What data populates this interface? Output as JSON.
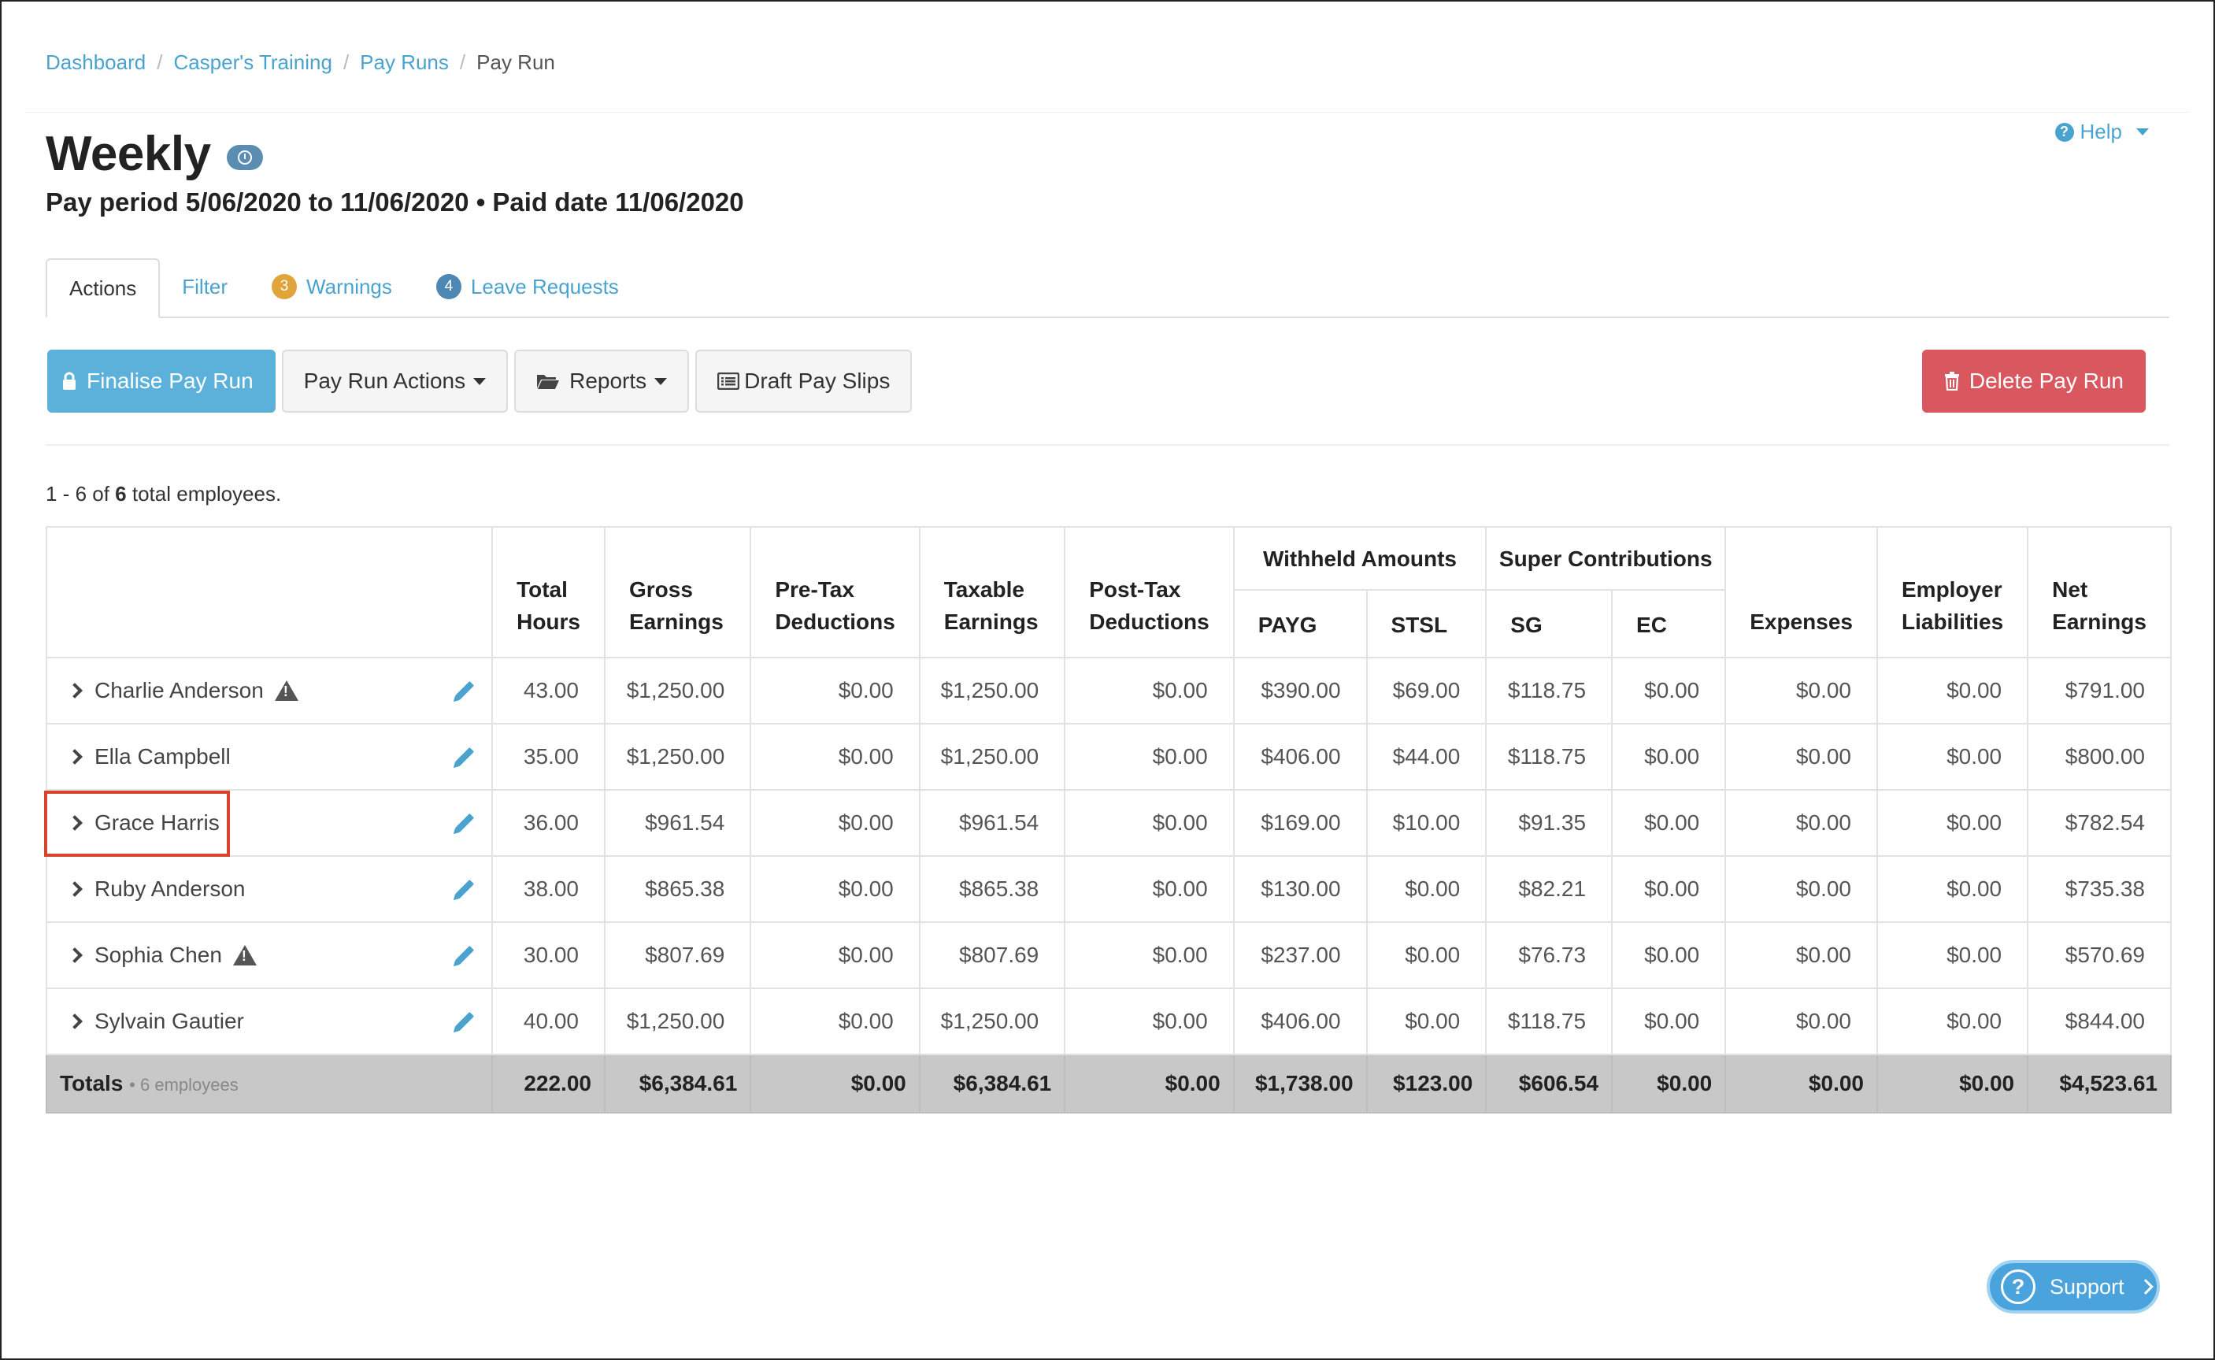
{
  "breadcrumb": {
    "items": [
      "Dashboard",
      "Casper's Training",
      "Pay Runs"
    ],
    "current": "Pay Run"
  },
  "help": {
    "label": "Help"
  },
  "page": {
    "title": "Weekly",
    "subtitle": "Pay period 5/06/2020 to 11/06/2020 • Paid date 11/06/2020"
  },
  "tabs": [
    {
      "label": "Actions",
      "badge": ""
    },
    {
      "label": "Filter",
      "badge": ""
    },
    {
      "label": "Warnings",
      "badge": "3",
      "badge_color": "#e0a43a"
    },
    {
      "label": "Leave Requests",
      "badge": "4",
      "badge_color": "#4f87b4"
    }
  ],
  "toolbar": {
    "finalise": "Finalise Pay Run",
    "pay_run_actions": "Pay Run Actions",
    "reports": "Reports",
    "draft_pay_slips": "Draft Pay Slips",
    "delete": "Delete Pay Run"
  },
  "count": {
    "prefix": "1 - 6 of",
    "total": "6",
    "suffix": "total employees."
  },
  "table": {
    "headers": {
      "total_hours": "Total Hours",
      "gross_earnings": "Gross Earnings",
      "pre_tax": "Pre-Tax Deductions",
      "taxable": "Taxable Earnings",
      "post_tax": "Post-Tax Deductions",
      "withheld": "Withheld Amounts",
      "payg": "PAYG",
      "stsl": "STSL",
      "super": "Super Contributions",
      "sg": "SG",
      "ec": "EC",
      "expenses": "Expenses",
      "employer_liabilities": "Employer Liabilities",
      "net_earnings": "Net Earnings"
    },
    "rows": [
      {
        "name": "Charlie Anderson",
        "warning": true,
        "cells": [
          "43.00",
          "$1,250.00",
          "$0.00",
          "$1,250.00",
          "$0.00",
          "$390.00",
          "$69.00",
          "$118.75",
          "$0.00",
          "$0.00",
          "$0.00",
          "$791.00"
        ]
      },
      {
        "name": "Ella Campbell",
        "warning": false,
        "cells": [
          "35.00",
          "$1,250.00",
          "$0.00",
          "$1,250.00",
          "$0.00",
          "$406.00",
          "$44.00",
          "$118.75",
          "$0.00",
          "$0.00",
          "$0.00",
          "$800.00"
        ]
      },
      {
        "name": "Grace Harris",
        "warning": false,
        "cells": [
          "36.00",
          "$961.54",
          "$0.00",
          "$961.54",
          "$0.00",
          "$169.00",
          "$10.00",
          "$91.35",
          "$0.00",
          "$0.00",
          "$0.00",
          "$782.54"
        ]
      },
      {
        "name": "Ruby Anderson",
        "warning": false,
        "cells": [
          "38.00",
          "$865.38",
          "$0.00",
          "$865.38",
          "$0.00",
          "$130.00",
          "$0.00",
          "$82.21",
          "$0.00",
          "$0.00",
          "$0.00",
          "$735.38"
        ]
      },
      {
        "name": "Sophia Chen",
        "warning": true,
        "cells": [
          "30.00",
          "$807.69",
          "$0.00",
          "$807.69",
          "$0.00",
          "$237.00",
          "$0.00",
          "$76.73",
          "$0.00",
          "$0.00",
          "$0.00",
          "$570.69"
        ]
      },
      {
        "name": "Sylvain Gautier",
        "warning": false,
        "cells": [
          "40.00",
          "$1,250.00",
          "$0.00",
          "$1,250.00",
          "$0.00",
          "$406.00",
          "$0.00",
          "$118.75",
          "$0.00",
          "$0.00",
          "$0.00",
          "$844.00"
        ]
      }
    ],
    "totals": {
      "label": "Totals",
      "sub": "• 6 employees",
      "cells": [
        "222.00",
        "$6,384.61",
        "$0.00",
        "$6,384.61",
        "$0.00",
        "$1,738.00",
        "$123.00",
        "$606.54",
        "$0.00",
        "$0.00",
        "$0.00",
        "$4,523.61"
      ]
    }
  },
  "support": {
    "label": "Support"
  },
  "colors": {
    "link": "#4aa3cf",
    "primary": "#5bb1da",
    "danger": "#d9575f",
    "highlight": "#d9432b"
  }
}
